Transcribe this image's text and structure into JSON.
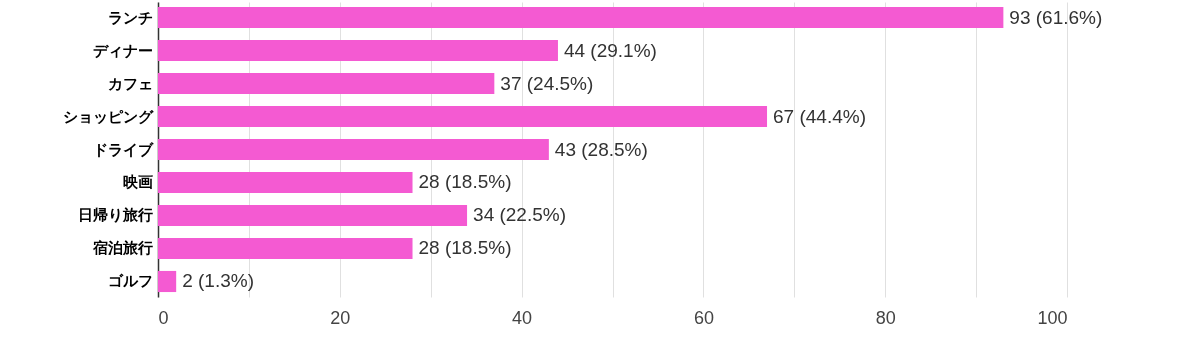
{
  "chart_data": {
    "type": "bar",
    "orientation": "horizontal",
    "categories": [
      "ランチ",
      "ディナー",
      "カフェ",
      "ショッピング",
      "ドライブ",
      "映画",
      "日帰り旅行",
      "宿泊旅行",
      "ゴルフ"
    ],
    "values": [
      93,
      44,
      37,
      67,
      43,
      28,
      34,
      28,
      2
    ],
    "value_labels": [
      "93 (61.6%)",
      "44 (29.1%)",
      "37 (24.5%)",
      "67 (44.4%)",
      "43 (28.5%)",
      "28 (18.5%)",
      "34 (22.5%)",
      "28 (18.5%)",
      "2 (1.3%)"
    ],
    "color": "#f45ad2",
    "xlim": [
      0,
      100
    ],
    "xticks": [
      0,
      {
        "value": 10,
        "label": null
      },
      20,
      {
        "value": 30,
        "label": null
      },
      40,
      {
        "value": 50,
        "label": null
      },
      60,
      {
        "value": 70,
        "label": null
      },
      80,
      {
        "value": 90,
        "label": null
      },
      100
    ],
    "grid": "x"
  }
}
